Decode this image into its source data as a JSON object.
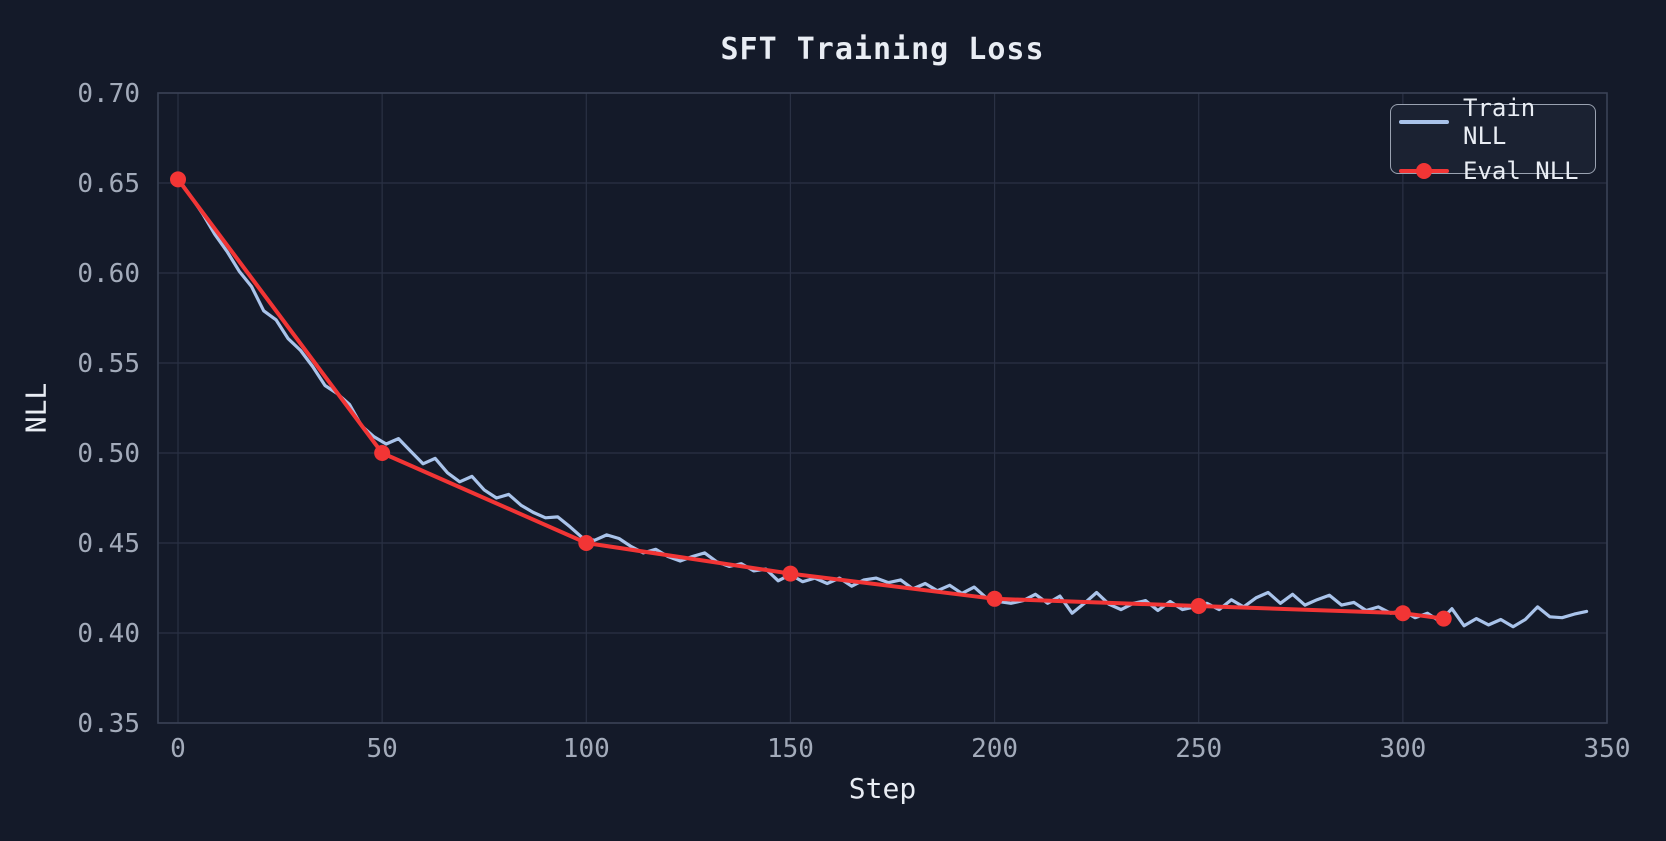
{
  "chart_data": {
    "type": "line",
    "title": "SFT Training Loss",
    "xlabel": "Step",
    "ylabel": "NLL",
    "xlim": [
      -4.9,
      350
    ],
    "ylim": [
      0.35,
      0.7
    ],
    "x_ticks": [
      0,
      50,
      100,
      150,
      200,
      250,
      300,
      350
    ],
    "x_tick_labels": [
      "0",
      "50",
      "100",
      "150",
      "200",
      "250",
      "300",
      "350"
    ],
    "y_ticks": [
      0.35,
      0.4,
      0.45,
      0.5,
      0.55,
      0.6,
      0.65,
      0.7
    ],
    "y_tick_labels": [
      "0.35",
      "0.40",
      "0.45",
      "0.50",
      "0.55",
      "0.60",
      "0.65",
      "0.70"
    ],
    "grid": true,
    "legend_position": "upper right",
    "series": [
      {
        "name": "Train NLL",
        "color": "#a9c3ea",
        "line_width": 3.2,
        "marker": "none",
        "steps": [
          0,
          3,
          6,
          9,
          12,
          15,
          18,
          21,
          24,
          27,
          30,
          33,
          36,
          39,
          42,
          45,
          48,
          51,
          54,
          57,
          60,
          63,
          66,
          69,
          72,
          75,
          78,
          81,
          84,
          87,
          90,
          93,
          96,
          99,
          102,
          105,
          108,
          111,
          114,
          117,
          120,
          123,
          126,
          129,
          132,
          135,
          138,
          141,
          144,
          147,
          150,
          153,
          156,
          159,
          162,
          165,
          168,
          171,
          174,
          177,
          180,
          183,
          186,
          189,
          192,
          195,
          198,
          201,
          204,
          207,
          210,
          213,
          216,
          219,
          222,
          225,
          228,
          231,
          234,
          237,
          240,
          243,
          246,
          249,
          252,
          255,
          258,
          261,
          264,
          267,
          270,
          273,
          276,
          279,
          282,
          285,
          288,
          291,
          294,
          297,
          300,
          303,
          306,
          309,
          312,
          315,
          318,
          321,
          324,
          327,
          330,
          333,
          336,
          339,
          342,
          345
        ],
        "values": [
          0.6525,
          0.643,
          0.633,
          0.6215,
          0.612,
          0.601,
          0.5925,
          0.579,
          0.574,
          0.5635,
          0.557,
          0.548,
          0.5375,
          0.533,
          0.527,
          0.515,
          0.509,
          0.505,
          0.508,
          0.501,
          0.494,
          0.497,
          0.489,
          0.484,
          0.487,
          0.4795,
          0.475,
          0.477,
          0.471,
          0.467,
          0.464,
          0.4645,
          0.459,
          0.453,
          0.4515,
          0.4545,
          0.4525,
          0.448,
          0.4445,
          0.4465,
          0.4425,
          0.44,
          0.4425,
          0.4445,
          0.4395,
          0.437,
          0.4385,
          0.4345,
          0.4355,
          0.429,
          0.4325,
          0.4285,
          0.4305,
          0.4275,
          0.4305,
          0.426,
          0.4295,
          0.4305,
          0.428,
          0.4295,
          0.4245,
          0.4275,
          0.4235,
          0.4265,
          0.422,
          0.4255,
          0.4195,
          0.4175,
          0.4165,
          0.418,
          0.4215,
          0.4165,
          0.4205,
          0.411,
          0.4165,
          0.4225,
          0.416,
          0.413,
          0.4165,
          0.418,
          0.4125,
          0.4175,
          0.413,
          0.4145,
          0.4165,
          0.413,
          0.4185,
          0.4145,
          0.4195,
          0.4225,
          0.4165,
          0.4215,
          0.4155,
          0.4185,
          0.421,
          0.4155,
          0.417,
          0.4125,
          0.4145,
          0.411,
          0.4125,
          0.4085,
          0.411,
          0.4065,
          0.4135,
          0.404,
          0.408,
          0.4045,
          0.4075,
          0.4035,
          0.4075,
          0.4145,
          0.409,
          0.4085,
          0.4105,
          0.412
        ]
      },
      {
        "name": "Eval NLL",
        "color": "#f23535",
        "line_width": 4,
        "marker": "circle",
        "marker_radius": 8,
        "steps": [
          0,
          50,
          100,
          150,
          200,
          250,
          300,
          310
        ],
        "values": [
          0.652,
          0.5,
          0.45,
          0.433,
          0.419,
          0.415,
          0.411,
          0.408
        ]
      }
    ],
    "colors": {
      "background": "#141a29",
      "grid": "#2a3144",
      "spine": "#3a4255",
      "tick_label": "#a3abba",
      "text": "#e9edf4",
      "legend_bg": "#1b2232",
      "legend_border": "#9aa2b1"
    }
  }
}
